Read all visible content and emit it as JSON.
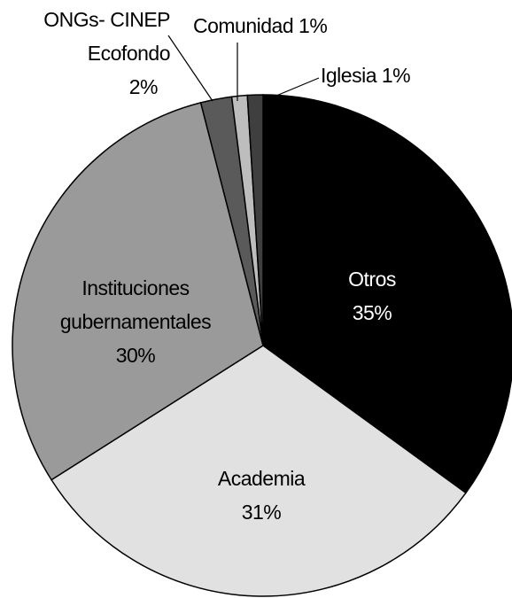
{
  "chart_data": {
    "type": "pie",
    "categories": [
      "Otros",
      "Academia",
      "Instituciones gubernamentales",
      "ONGs- CINEP Ecofondo",
      "Comunidad",
      "Iglesia"
    ],
    "values": [
      35,
      31,
      30,
      2,
      1,
      1
    ],
    "value_labels": [
      "35%",
      "31%",
      "30%",
      "2%",
      "1%",
      "1%"
    ],
    "colors": [
      "#000000",
      "#e1e1e1",
      "#9a9a9a",
      "#5a5a5a",
      "#bdbdbd",
      "#3f3f3f"
    ]
  }
}
